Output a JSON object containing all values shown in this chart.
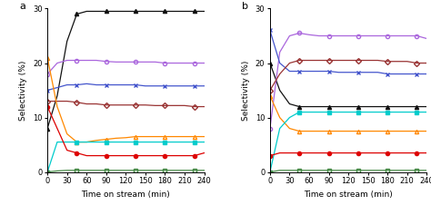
{
  "time": [
    0,
    15,
    30,
    45,
    60,
    75,
    90,
    105,
    120,
    135,
    150,
    165,
    180,
    195,
    210,
    225,
    240
  ],
  "panel_a": {
    "black_triangle": [
      8,
      14,
      24,
      29,
      29.5,
      29.5,
      29.5,
      29.5,
      29.5,
      29.5,
      29.5,
      29.5,
      29.5,
      29.5,
      29.5,
      29.5,
      29.5
    ],
    "purple_circle_open": [
      18,
      20,
      20.5,
      20.5,
      20.5,
      20.5,
      20.3,
      20.2,
      20.2,
      20.2,
      20.2,
      20.2,
      20.0,
      20.0,
      20.0,
      20.0,
      20.0
    ],
    "blue_x": [
      15,
      15.5,
      16,
      16,
      16.2,
      16,
      16,
      16,
      16,
      16,
      15.8,
      15.8,
      15.8,
      15.8,
      15.8,
      15.8,
      15.8
    ],
    "brown_circle_open": [
      13,
      13,
      13,
      12.8,
      12.5,
      12.5,
      12.3,
      12.3,
      12.3,
      12.3,
      12.3,
      12.2,
      12.2,
      12.2,
      12.2,
      12.0,
      12.0
    ],
    "orange_triangle_open": [
      21,
      12,
      7,
      5.5,
      5.5,
      5.8,
      6,
      6.2,
      6.3,
      6.5,
      6.5,
      6.5,
      6.5,
      6.5,
      6.5,
      6.5,
      6.5
    ],
    "cyan_square": [
      0,
      5.5,
      5.5,
      5.5,
      5.5,
      5.5,
      5.5,
      5.5,
      5.5,
      5.5,
      5.5,
      5.5,
      5.5,
      5.5,
      5.5,
      5.5,
      5.5
    ],
    "red_circle": [
      12,
      8,
      4,
      3.5,
      3,
      3,
      3,
      3,
      3,
      3,
      3,
      3,
      3,
      3,
      3,
      3,
      3.5
    ],
    "green_square_open": [
      0,
      0.2,
      0.3,
      0.3,
      0.3,
      0.3,
      0.3,
      0.3,
      0.3,
      0.3,
      0.3,
      0.3,
      0.3,
      0.3,
      0.3,
      0.3,
      0.3
    ]
  },
  "panel_b": {
    "purple_circle_open": [
      8,
      22,
      25,
      25.5,
      25.2,
      25,
      25,
      25,
      25,
      25,
      25,
      25,
      25,
      25,
      25,
      25,
      24.5
    ],
    "brown_circle_open": [
      15,
      18,
      20,
      20.5,
      20.5,
      20.5,
      20.5,
      20.5,
      20.5,
      20.5,
      20.5,
      20.5,
      20.3,
      20.3,
      20.3,
      20.0,
      20.0
    ],
    "blue_x": [
      26,
      20,
      18.5,
      18.5,
      18.5,
      18.5,
      18.5,
      18.3,
      18.3,
      18.3,
      18.3,
      18.3,
      18.0,
      18.0,
      18.0,
      18.0,
      18.0
    ],
    "black_triangle": [
      20,
      15,
      12.5,
      12,
      12,
      12,
      12,
      12,
      12,
      12,
      12,
      12,
      12,
      12,
      12,
      12,
      12
    ],
    "cyan_square": [
      0,
      8,
      10,
      11,
      11,
      11,
      11,
      11,
      11,
      11,
      11,
      11,
      11,
      11,
      11,
      11,
      11
    ],
    "orange_triangle_open": [
      14,
      10,
      8,
      7.5,
      7.5,
      7.5,
      7.5,
      7.5,
      7.5,
      7.5,
      7.5,
      7.5,
      7.5,
      7.5,
      7.5,
      7.5,
      7.5
    ],
    "red_circle": [
      3,
      3.5,
      3.5,
      3.5,
      3.5,
      3.5,
      3.5,
      3.5,
      3.5,
      3.5,
      3.5,
      3.5,
      3.5,
      3.5,
      3.5,
      3.5,
      3.5
    ],
    "green_square_open": [
      0,
      0.3,
      0.3,
      0.3,
      0.3,
      0.3,
      0.3,
      0.3,
      0.3,
      0.3,
      0.3,
      0.3,
      0.3,
      0.3,
      0.3,
      0.3,
      0.3
    ]
  },
  "colors": {
    "black": "#111111",
    "purple": "#aa66dd",
    "blue": "#4455cc",
    "brown": "#993333",
    "orange": "#ff8800",
    "cyan": "#00cccc",
    "red": "#dd0000",
    "green": "#448844"
  },
  "ylim": [
    0,
    30
  ],
  "yticks": [
    0,
    10,
    20,
    30
  ],
  "xticks": [
    0,
    30,
    60,
    90,
    120,
    150,
    180,
    210,
    240
  ],
  "xlabel": "Time on stream (min)",
  "ylabel": "Selectivity (%)",
  "markevery": 3,
  "markersize": 3.0,
  "linewidth": 0.9
}
